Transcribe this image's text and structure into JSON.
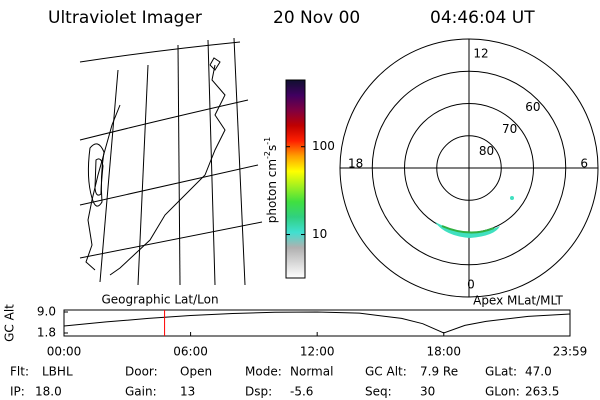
{
  "header": {
    "instrument": "Ultraviolet Imager",
    "date": "20 Nov 00",
    "time": "04:46:04 UT"
  },
  "geo_map": {
    "label": "Geographic Lat/Lon"
  },
  "colorbar": {
    "label": {
      "text": "photon cm",
      "exp": "-2",
      "unit2": "s",
      "exp2": "-1"
    },
    "log": true,
    "lim": [
      3.2,
      575
    ],
    "ticks": [
      10,
      100
    ],
    "colors": [
      "#ffffff",
      "#d8d8d8",
      "#b0b0b0",
      "#40e0d0",
      "#30d080",
      "#40e040",
      "#a0f020",
      "#ffff00",
      "#ffa000",
      "#ff2000",
      "#c00000",
      "#800040",
      "#400060",
      "#101030"
    ]
  },
  "polar": {
    "label": "Apex MLat/MLT",
    "hour_labels": [
      "0",
      "6",
      "12",
      "18"
    ],
    "rlim": [
      90,
      50
    ],
    "rticks": [
      60,
      70,
      80
    ]
  },
  "chart_data": {
    "type": "line",
    "ylabel": "GC Alt",
    "x": [
      0,
      2,
      4,
      6,
      8,
      10,
      12,
      14,
      16,
      17,
      18,
      19,
      20,
      22,
      23.983
    ],
    "series": [
      {
        "color": "#000000",
        "values": [
          4.2,
          5.6,
          6.8,
          7.8,
          8.5,
          8.9,
          9.0,
          8.6,
          6.8,
          5.0,
          1.8,
          4.4,
          5.8,
          7.5,
          8.3
        ]
      }
    ],
    "xlim": [
      0,
      23.983
    ],
    "xticks": [
      {
        "value": 0,
        "label": "00:00"
      },
      {
        "value": 6,
        "label": "06:00"
      },
      {
        "value": 12,
        "label": "12:00"
      },
      {
        "value": 18,
        "label": "18:00"
      },
      {
        "value": 23.983,
        "label": "23:59"
      }
    ],
    "ylim": [
      1.8,
      9.0
    ],
    "yticks": [
      1.8,
      {
        "value": 9,
        "label": "9.0"
      }
    ],
    "marker_x": 4.767,
    "marker_color": "#ff0000"
  },
  "info": [
    [
      {
        "label": "Flt:",
        "value": "LBHL"
      },
      {
        "label": "Door:",
        "value": "Open"
      },
      {
        "label": "Mode:",
        "value": "Normal"
      },
      {
        "label": "GC Alt:",
        "value": "7.9 Re"
      },
      {
        "label": "GLat:",
        "value": "47.0"
      }
    ],
    [
      {
        "label": "IP:",
        "value": "18.0"
      },
      {
        "label": "Gain:",
        "value": "13"
      },
      {
        "label": "Dsp:",
        "value": "-5.6"
      },
      {
        "label": "Seq:",
        "value": "30"
      },
      {
        "label": "GLon:",
        "value": "263.5"
      }
    ]
  ]
}
